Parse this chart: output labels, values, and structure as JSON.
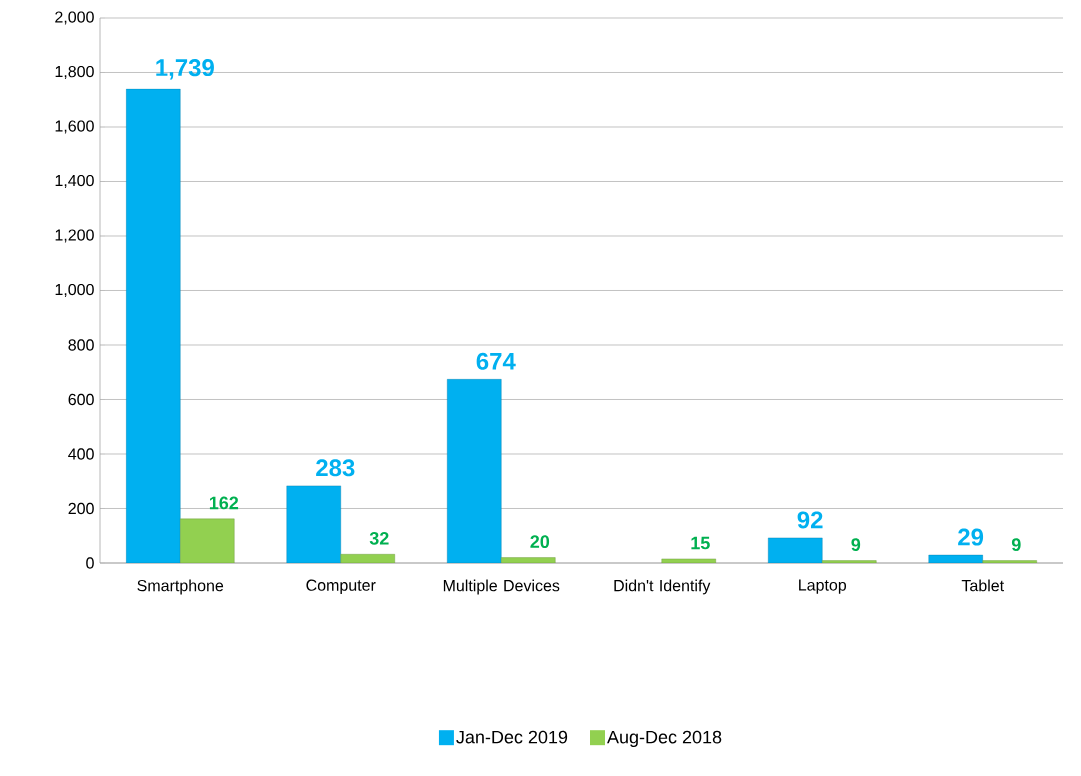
{
  "chart_data": {
    "type": "bar",
    "categories": [
      "Smartphone",
      "Computer",
      "Multiple Devices",
      "Didn't Identify",
      "Laptop",
      "Tablet"
    ],
    "series": [
      {
        "name": "Jan-Dec 2019",
        "color": "#00b0f0",
        "values": [
          1739,
          283,
          674,
          null,
          92,
          29
        ],
        "value_labels": [
          "1,739",
          "283",
          "674",
          null,
          "92",
          "29"
        ]
      },
      {
        "name": "Aug-Dec 2018",
        "color": "#92d050",
        "values": [
          162,
          32,
          20,
          15,
          9,
          9
        ],
        "value_labels": [
          "162",
          "32",
          "20",
          "15",
          "9",
          "9"
        ]
      }
    ],
    "ylim": [
      0,
      2000
    ],
    "yticks": [
      0,
      200,
      400,
      600,
      800,
      {
        "value": 1000,
        "label": "1,000"
      },
      {
        "value": 1200,
        "label": "1,200"
      },
      {
        "value": 1400,
        "label": "1,400"
      },
      {
        "value": 1600,
        "label": "1,600"
      },
      {
        "value": 1800,
        "label": "1,800"
      },
      {
        "value": 2000,
        "label": "2,000"
      }
    ],
    "grid": "y",
    "legend": "bottom"
  }
}
